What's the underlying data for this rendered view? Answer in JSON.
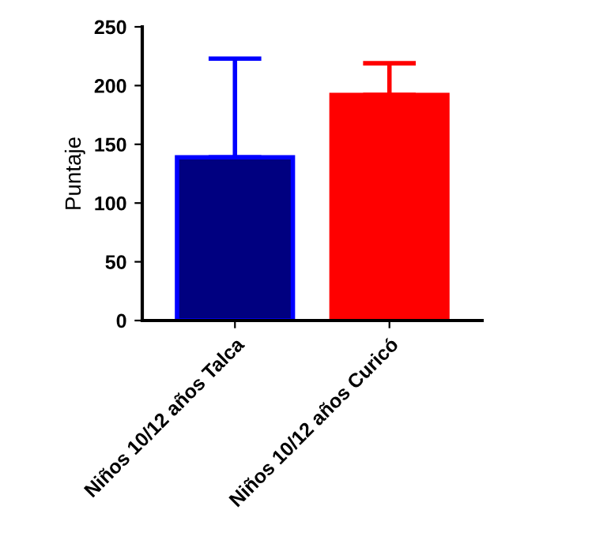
{
  "chart_data": {
    "type": "bar",
    "ylabel": "Puntaje",
    "categories": [
      "Niños 10/12 años Talca",
      "Niños 10/12 años Curicó"
    ],
    "values": [
      139,
      192
    ],
    "colors": [
      "#0000ff",
      "#ff0000"
    ],
    "errors": [
      [
        139,
        223
      ],
      [
        192,
        219
      ]
    ],
    "ylim": [
      0,
      250
    ],
    "yticks": [
      0,
      50,
      100,
      150,
      200,
      250
    ],
    "grid": false
  }
}
